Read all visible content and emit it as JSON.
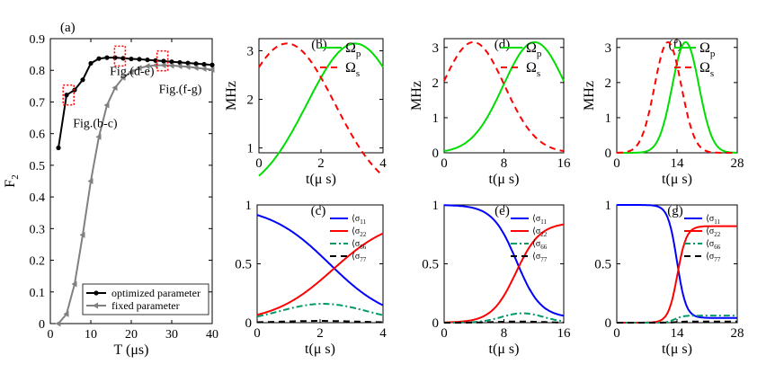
{
  "chart_data": [
    {
      "id": "a",
      "label": "(a)",
      "type": "line",
      "xlabel": "T (μs)",
      "ylabel": "F",
      "ylabel_sub": "2",
      "xlim": [
        0,
        40
      ],
      "ylim": [
        0,
        0.9
      ],
      "xticks": [
        0,
        10,
        20,
        30,
        40
      ],
      "yticks": [
        0,
        0.1,
        0.2,
        0.3,
        0.4,
        0.5,
        0.6,
        0.7,
        0.8,
        0.9
      ],
      "series": [
        {
          "name": "optimized parameter",
          "color": "#000000",
          "marker": "circle",
          "x": [
            2,
            4,
            6,
            8,
            10,
            12,
            14,
            16,
            18,
            20,
            22,
            24,
            26,
            28,
            30,
            32,
            34,
            36,
            38,
            40
          ],
          "y": [
            0.555,
            0.722,
            0.738,
            0.77,
            0.822,
            0.837,
            0.84,
            0.84,
            0.838,
            0.836,
            0.835,
            0.833,
            0.831,
            0.829,
            0.827,
            0.825,
            0.823,
            0.821,
            0.819,
            0.817
          ]
        },
        {
          "name": "fixed parameter",
          "color": "#808080",
          "marker": "triangle-left",
          "x": [
            2,
            4,
            6,
            8,
            10,
            12,
            14,
            16,
            18,
            20,
            22,
            24,
            26,
            28,
            30,
            32,
            34,
            36,
            38,
            40
          ],
          "y": [
            0.0,
            0.03,
            0.125,
            0.28,
            0.45,
            0.59,
            0.69,
            0.745,
            0.777,
            0.795,
            0.807,
            0.813,
            0.816,
            0.816,
            0.815,
            0.813,
            0.811,
            0.808,
            0.805,
            0.802
          ]
        }
      ],
      "annotations": [
        {
          "text": "Fig.(b-c)",
          "x": 5.6,
          "y": 0.62
        },
        {
          "text": "Fig.(d-e)",
          "x": 14.7,
          "y": 0.785
        },
        {
          "text": "Fig.(f-g)",
          "x": 26.8,
          "y": 0.728
        }
      ],
      "boxes": [
        {
          "x": 4.5,
          "y": 0.722
        },
        {
          "x": 17.2,
          "y": 0.845
        },
        {
          "x": 27.7,
          "y": 0.83
        }
      ],
      "legend_position": "bottom-right"
    },
    {
      "id": "b",
      "label": "(b)",
      "type": "line",
      "xlabel": "t(μ s)",
      "ylabel": "MHz",
      "xlim": [
        0,
        4
      ],
      "ylim": [
        0.9,
        3.25
      ],
      "xticks": [
        0,
        2,
        4
      ],
      "yticks": [
        1,
        2,
        3
      ],
      "series": [
        {
          "name": "Ω",
          "sub": "p",
          "color": "#00dd00",
          "dash": "solid",
          "gaussian": {
            "amp": 3.15,
            "center": 3.1,
            "width": 1.55
          }
        },
        {
          "name": "Ω",
          "sub": "s",
          "color": "#ff0000",
          "dash": "dashed",
          "gaussian": {
            "amp": 3.15,
            "center": 0.9,
            "width": 1.55
          }
        }
      ],
      "legend_position": "top-right"
    },
    {
      "id": "c",
      "label": "(c)",
      "type": "line",
      "xlabel": "t(μ s)",
      "ylabel": "",
      "xlim": [
        0,
        4
      ],
      "ylim": [
        0,
        1
      ],
      "xticks": [
        0,
        2,
        4
      ],
      "yticks": [
        0,
        0.5,
        1
      ],
      "series": [
        {
          "name": "⟨σ",
          "sub": "11",
          "color": "#0000ff",
          "dash": "solid",
          "sigmoid": {
            "start": 1.0,
            "end": 0.0,
            "center": 2.3,
            "k": 1.03
          }
        },
        {
          "name": "⟨σ",
          "sub": "22",
          "color": "#ff0000",
          "dash": "solid",
          "sigmoid": {
            "start": 0.0,
            "end": 0.9,
            "center": 2.4,
            "k": 1.05
          }
        },
        {
          "name": "⟨σ",
          "sub": "66",
          "color": "#009a66",
          "dash": "dashdot",
          "gaussian": {
            "amp": 0.16,
            "center": 2.1,
            "width": 1.4
          }
        },
        {
          "name": "⟨σ",
          "sub": "77",
          "color": "#000000",
          "dash": "dashed",
          "gaussian": {
            "amp": 0.015,
            "center": 2.0,
            "width": 1.2
          }
        }
      ],
      "legend_position": "top-right"
    },
    {
      "id": "d",
      "label": "(d)",
      "type": "line",
      "xlabel": "t(μ s)",
      "ylabel": "MHz",
      "xlim": [
        0,
        16
      ],
      "ylim": [
        0,
        3.25
      ],
      "xticks": [
        0,
        8,
        16
      ],
      "yticks": [
        0,
        1,
        2,
        3
      ],
      "series": [
        {
          "name": "Ω",
          "sub": "p",
          "color": "#00dd00",
          "dash": "solid",
          "gaussian": {
            "amp": 3.15,
            "center": 12.1,
            "width": 4.2
          }
        },
        {
          "name": "Ω",
          "sub": "s",
          "color": "#ff0000",
          "dash": "dashed",
          "gaussian": {
            "amp": 3.15,
            "center": 3.9,
            "width": 4.2
          }
        }
      ],
      "legend_position": "top-right"
    },
    {
      "id": "e",
      "label": "(e)",
      "type": "line",
      "xlabel": "t(μ s)",
      "ylabel": "",
      "xlim": [
        0,
        16
      ],
      "ylim": [
        0,
        1
      ],
      "xticks": [
        0,
        8,
        16
      ],
      "yticks": [
        0,
        0.5,
        1
      ],
      "series": [
        {
          "name": "⟨σ",
          "sub": "11",
          "color": "#0000ff",
          "dash": "solid",
          "sigmoid": {
            "start": 1.0,
            "end": 0.04,
            "center": 9.7,
            "k": 0.62
          }
        },
        {
          "name": "⟨σ",
          "sub": "22",
          "color": "#ff0000",
          "dash": "solid",
          "sigmoid": {
            "start": 0.0,
            "end": 0.85,
            "center": 9.6,
            "k": 0.62
          }
        },
        {
          "name": "⟨σ",
          "sub": "66",
          "color": "#009a66",
          "dash": "dashdot",
          "gaussian": {
            "amp": 0.08,
            "center": 10.5,
            "width": 2.8
          }
        },
        {
          "name": "⟨σ",
          "sub": "77",
          "color": "#000000",
          "dash": "dashed",
          "gaussian": {
            "amp": 0.01,
            "center": 10.0,
            "width": 3.0
          }
        }
      ],
      "legend_position": "top-right"
    },
    {
      "id": "f",
      "label": "(f)",
      "type": "line",
      "xlabel": "t(μ s)",
      "ylabel": "MHz",
      "xlim": [
        0,
        28
      ],
      "ylim": [
        0,
        3.25
      ],
      "xticks": [
        0,
        14,
        28
      ],
      "yticks": [
        0,
        1,
        2,
        3
      ],
      "series": [
        {
          "name": "Ω",
          "sub": "p",
          "color": "#00dd00",
          "dash": "solid",
          "gaussian": {
            "amp": 3.15,
            "center": 16.0,
            "width": 3.1
          }
        },
        {
          "name": "Ω",
          "sub": "s",
          "color": "#ff0000",
          "dash": "dashed",
          "gaussian": {
            "amp": 3.15,
            "center": 11.9,
            "width": 3.1
          }
        }
      ],
      "legend_position": "top-right"
    },
    {
      "id": "g",
      "label": "(g)",
      "type": "line",
      "xlabel": "t(μ s)",
      "ylabel": "",
      "xlim": [
        0,
        28
      ],
      "ylim": [
        0,
        1
      ],
      "xticks": [
        0,
        14,
        28
      ],
      "yticks": [
        0,
        0.5,
        1
      ],
      "series": [
        {
          "name": "⟨σ",
          "sub": "11",
          "color": "#0000ff",
          "dash": "solid",
          "sigmoid": {
            "start": 1.0,
            "end": 0.04,
            "center": 14.0,
            "k": 0.95
          }
        },
        {
          "name": "⟨σ",
          "sub": "22",
          "color": "#ff0000",
          "dash": "solid",
          "sigmoid": {
            "start": 0.0,
            "end": 0.82,
            "center": 14.1,
            "k": 0.95
          }
        },
        {
          "name": "⟨σ",
          "sub": "66",
          "color": "#009a66",
          "dash": "dashdot",
          "sigmoid": {
            "start": 0.0,
            "end": 0.06,
            "center": 13.5,
            "k": 1.1
          }
        },
        {
          "name": "⟨σ",
          "sub": "77",
          "color": "#000000",
          "dash": "dashed",
          "sigmoid": {
            "start": 0.0,
            "end": 0.01,
            "center": 14.0,
            "k": 1.0
          }
        }
      ],
      "legend_position": "top-right"
    }
  ]
}
